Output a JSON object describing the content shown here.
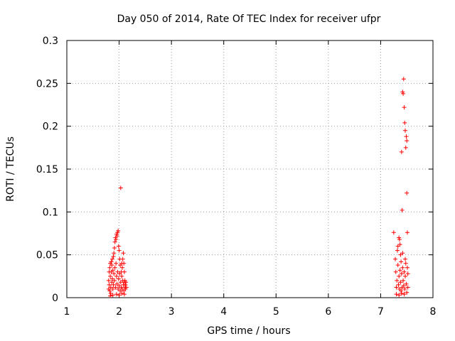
{
  "chart_data": {
    "type": "scatter",
    "title": "Day 050 of 2014, Rate Of TEC Index for receiver ufpr",
    "xlabel": "GPS time / hours",
    "ylabel": "ROTI / TECUs",
    "xlim": [
      1,
      8
    ],
    "ylim": [
      0,
      0.3
    ],
    "xticks": [
      1,
      2,
      3,
      4,
      5,
      6,
      7,
      8
    ],
    "xtick_labels": [
      "1",
      "2",
      "3",
      "4",
      "5",
      "6",
      "7",
      "8"
    ],
    "yticks": [
      0,
      0.05,
      0.1,
      0.15,
      0.2,
      0.25,
      0.3
    ],
    "ytick_labels": [
      "0",
      "0.05",
      "0.1",
      "0.15",
      "0.2",
      "0.25",
      "0.3"
    ],
    "grid": true,
    "marker": "+",
    "color": "#ff0000",
    "series": [
      {
        "name": "ROTI",
        "points": [
          [
            1.8,
            0.01
          ],
          [
            1.8,
            0.02
          ],
          [
            1.81,
            0.03
          ],
          [
            1.81,
            0.015
          ],
          [
            1.82,
            0.035
          ],
          [
            1.82,
            0.008
          ],
          [
            1.83,
            0.04
          ],
          [
            1.83,
            0.025
          ],
          [
            1.84,
            0.012
          ],
          [
            1.84,
            0.005
          ],
          [
            1.85,
            0.042
          ],
          [
            1.85,
            0.03
          ],
          [
            1.86,
            0.018
          ],
          [
            1.86,
            0.038
          ],
          [
            1.87,
            0.022
          ],
          [
            1.87,
            0.045
          ],
          [
            1.88,
            0.01
          ],
          [
            1.88,
            0.032
          ],
          [
            1.89,
            0.048
          ],
          [
            1.89,
            0.015
          ],
          [
            1.9,
            0.052
          ],
          [
            1.9,
            0.028
          ],
          [
            1.91,
            0.058
          ],
          [
            1.91,
            0.02
          ],
          [
            1.92,
            0.065
          ],
          [
            1.92,
            0.035
          ],
          [
            1.93,
            0.07
          ],
          [
            1.93,
            0.012
          ],
          [
            1.94,
            0.068
          ],
          [
            1.94,
            0.04
          ],
          [
            1.95,
            0.074
          ],
          [
            1.95,
            0.025
          ],
          [
            1.96,
            0.072
          ],
          [
            1.96,
            0.016
          ],
          [
            1.97,
            0.076
          ],
          [
            1.97,
            0.03
          ],
          [
            1.98,
            0.078
          ],
          [
            1.98,
            0.01
          ],
          [
            1.99,
            0.06
          ],
          [
            1.99,
            0.022
          ],
          [
            2.0,
            0.055
          ],
          [
            2.0,
            0.014
          ],
          [
            2.01,
            0.045
          ],
          [
            2.01,
            0.028
          ],
          [
            2.02,
            0.038
          ],
          [
            2.02,
            0.008
          ],
          [
            2.03,
            0.128
          ],
          [
            2.03,
            0.018
          ],
          [
            2.04,
            0.03
          ],
          [
            2.04,
            0.012
          ],
          [
            2.05,
            0.025
          ],
          [
            2.05,
            0.04
          ],
          [
            2.06,
            0.035
          ],
          [
            2.06,
            0.01
          ],
          [
            2.07,
            0.045
          ],
          [
            2.07,
            0.02
          ],
          [
            2.08,
            0.052
          ],
          [
            2.08,
            0.015
          ],
          [
            2.09,
            0.04
          ],
          [
            2.09,
            0.008
          ],
          [
            2.1,
            0.03
          ],
          [
            2.1,
            0.018
          ],
          [
            2.11,
            0.02
          ],
          [
            2.11,
            0.012
          ],
          [
            2.12,
            0.015
          ],
          [
            2.12,
            0.01
          ],
          [
            2.13,
            0.018
          ],
          [
            2.14,
            0.012
          ],
          [
            1.83,
            0.002
          ],
          [
            1.88,
            0.003
          ],
          [
            1.95,
            0.004
          ],
          [
            2.0,
            0.003
          ],
          [
            2.05,
            0.005
          ],
          [
            2.1,
            0.004
          ],
          [
            7.25,
            0.076
          ],
          [
            7.28,
            0.045
          ],
          [
            7.29,
            0.03
          ],
          [
            7.3,
            0.012
          ],
          [
            7.31,
            0.02
          ],
          [
            7.32,
            0.055
          ],
          [
            7.33,
            0.038
          ],
          [
            7.34,
            0.015
          ],
          [
            7.35,
            0.07
          ],
          [
            7.35,
            0.025
          ],
          [
            7.36,
            0.068
          ],
          [
            7.36,
            0.01
          ],
          [
            7.37,
            0.062
          ],
          [
            7.37,
            0.032
          ],
          [
            7.38,
            0.05
          ],
          [
            7.38,
            0.018
          ],
          [
            7.39,
            0.042
          ],
          [
            7.39,
            0.008
          ],
          [
            7.4,
            0.17
          ],
          [
            7.4,
            0.028
          ],
          [
            7.41,
            0.102
          ],
          [
            7.41,
            0.012
          ],
          [
            7.42,
            0.24
          ],
          [
            7.42,
            0.035
          ],
          [
            7.43,
            0.238
          ],
          [
            7.43,
            0.02
          ],
          [
            7.44,
            0.255
          ],
          [
            7.44,
            0.014
          ],
          [
            7.45,
            0.222
          ],
          [
            7.45,
            0.03
          ],
          [
            7.46,
            0.204
          ],
          [
            7.46,
            0.01
          ],
          [
            7.47,
            0.195
          ],
          [
            7.47,
            0.025
          ],
          [
            7.48,
            0.175
          ],
          [
            7.48,
            0.04
          ],
          [
            7.49,
            0.188
          ],
          [
            7.49,
            0.016
          ],
          [
            7.5,
            0.183
          ],
          [
            7.5,
            0.122
          ],
          [
            7.51,
            0.076
          ],
          [
            7.51,
            0.035
          ],
          [
            7.52,
            0.028
          ],
          [
            7.52,
            0.012
          ],
          [
            7.3,
            0.004
          ],
          [
            7.35,
            0.003
          ],
          [
            7.4,
            0.005
          ],
          [
            7.45,
            0.004
          ],
          [
            7.5,
            0.006
          ],
          [
            7.33,
            0.06
          ],
          [
            7.42,
            0.052
          ],
          [
            7.47,
            0.045
          ]
        ]
      }
    ]
  }
}
